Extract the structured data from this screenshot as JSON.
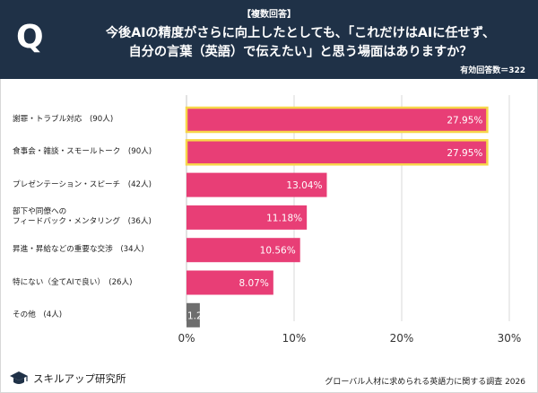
{
  "header": {
    "tag": "【複数回答】",
    "question_icon": "Q",
    "question_line1": "今後AIの精度がさらに向上したとしても、「これだけはAIに任せず、",
    "question_line2": "自分の言葉（英語）で伝えたい」と思う場面はありますか？",
    "valid_responses": "有効回答数＝322"
  },
  "colors": {
    "header_bg": "#1f3147",
    "bar_primary": "#e83e76",
    "bar_highlight_border": "#f7d64a",
    "bar_other": "#6e6e6e",
    "grid": "#cfcfcf"
  },
  "chart_data": {
    "type": "bar",
    "orientation": "horizontal",
    "categories": [
      "謝罪・トラブル対応　(90人)",
      "食事会・雑談・スモールトーク　(90人)",
      "プレゼンテーション・スピーチ　(42人)",
      "部下や同僚への\nフィードバック・メンタリング　(36人)",
      "昇進・昇給などの重要な交渉　(34人)",
      "特にない（全てAIで良い）　(26人)",
      "その他　(4人)"
    ],
    "values": [
      27.95,
      27.95,
      13.04,
      11.18,
      10.56,
      8.07,
      1.24
    ],
    "value_labels": [
      "27.95%",
      "27.95%",
      "13.04%",
      "11.18%",
      "10.56%",
      "8.07%",
      "1.24%"
    ],
    "highlighted": [
      true,
      true,
      false,
      false,
      false,
      false,
      false
    ],
    "xlim": [
      0,
      30
    ],
    "x_ticks": [
      "0%",
      "10%",
      "20%",
      "30%"
    ],
    "grid": true
  },
  "footer": {
    "logo_text": "スキルアップ研究所",
    "source": "グローバル人材に求められる英語力に関する調査 2026"
  }
}
